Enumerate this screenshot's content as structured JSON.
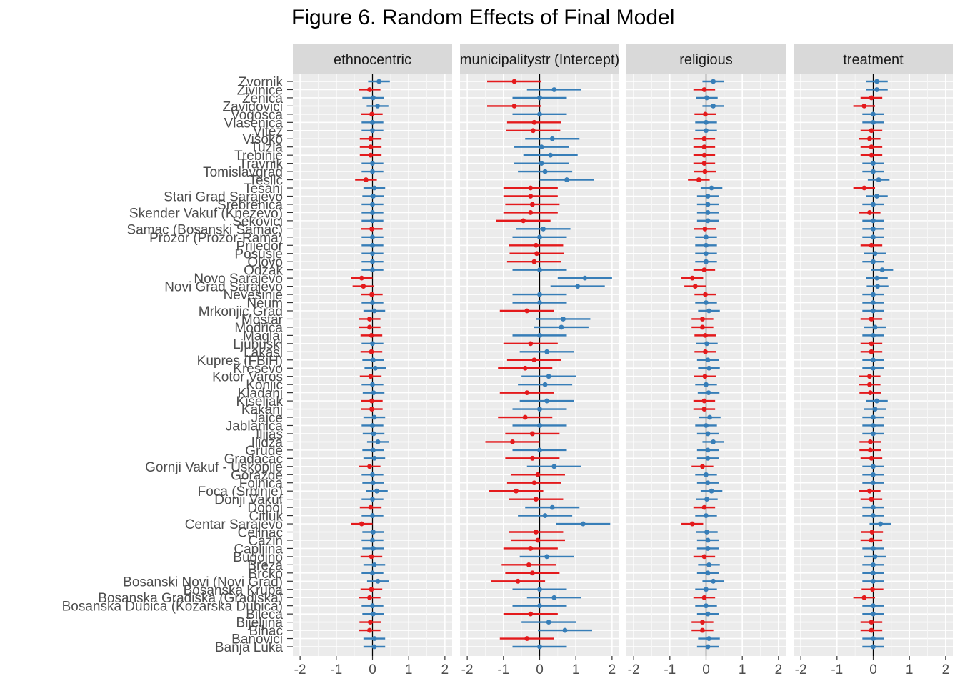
{
  "chart_data": {
    "type": "scatter",
    "title": "Figure 6. Random Effects of Final Model",
    "xlabel": "",
    "ylabel": "",
    "xlim": [
      -2.2,
      2.2
    ],
    "xticks": [
      -2,
      -1,
      0,
      1,
      2
    ],
    "xtick_labels": [
      "-2",
      "-1",
      "0",
      "1",
      "2"
    ],
    "grid": true,
    "reference_line": 0,
    "error_bars": "interval",
    "colors": {
      "negative": "#e41a1c",
      "positive": "#377eb8",
      "panel_bg": "#ebebeb",
      "strip_bg": "#d9d9d9"
    },
    "categories": [
      "Zvornik",
      "Zivinice",
      "Zenica",
      "Zavidovici",
      "Vogosca",
      "Vlasenica",
      "Vitez",
      "Visoko",
      "Tuzla",
      "Trebinje",
      "Travnik",
      "Tomislavgrad",
      "Teslic",
      "Tesanj",
      "Stari Grad Sarajevo",
      "Srebrenica",
      "Skender Vakuf (Knezevo)",
      "Sekovici",
      "Samac (Bosanski Samac)",
      "Prozor (Prozor-Rama)",
      "Prijedor",
      "Posusje",
      "Olovo",
      "Odzak",
      "Novo Sarajevo",
      "Novi Grad Sarajevo",
      "Nevesinje",
      "Neum",
      "Mrkonjic Grad",
      "Mostar",
      "Modrica",
      "Maglaj",
      "Ljubuski",
      "Lakasi",
      "Kupres (FBiH)",
      "Kresevo",
      "Kotor Varos",
      "Konjic",
      "Kladanj",
      "Kiseljak",
      "Kakanj",
      "Jajce",
      "Jablanica",
      "Ilijas",
      "Ilidza",
      "Grude",
      "Gradacac",
      "Gornji Vakuf - Uskoplje",
      "Gorazde",
      "Fojnica",
      "Foca (Srbinje)",
      "Donji Vakuf",
      "Doboj",
      "Citluk",
      "Centar Sarajevo",
      "Celinac",
      "Cazin",
      "Capljina",
      "Bugojno",
      "Breza",
      "Brcko",
      "Bosanski Novi (Novi Grad)",
      "Bosanska Krupa",
      "Bosanska Gradiska (Gradiska)",
      "Bosanska Dubica (Kozarska Dubica)",
      "Bileca",
      "Bijeljina",
      "Bihac",
      "Banovici",
      "Banja Luka"
    ],
    "panels": [
      {
        "name": "ethnocentric",
        "halfwidth": 0.3,
        "values": [
          0.18,
          -0.08,
          0.02,
          0.14,
          -0.02,
          0.0,
          0.0,
          -0.05,
          -0.05,
          -0.05,
          0.0,
          0.0,
          -0.18,
          0.05,
          0.02,
          0.0,
          0.0,
          0.0,
          -0.02,
          0.0,
          0.0,
          0.0,
          0.0,
          0.0,
          -0.3,
          -0.25,
          -0.02,
          0.0,
          0.05,
          -0.08,
          -0.08,
          -0.03,
          0.0,
          -0.03,
          0.02,
          0.08,
          -0.05,
          0.0,
          0.03,
          -0.02,
          -0.02,
          0.05,
          0.0,
          0.03,
          0.15,
          0.02,
          0.05,
          -0.08,
          0.0,
          0.02,
          0.12,
          0.0,
          -0.05,
          0.0,
          -0.3,
          0.02,
          0.0,
          0.02,
          -0.03,
          0.05,
          0.0,
          0.15,
          -0.03,
          -0.08,
          0.0,
          0.02,
          -0.06,
          -0.08,
          0.05,
          0.05
        ]
      },
      {
        "name": "municipalitystr (Intercept)",
        "halfwidth": 0.75,
        "values": [
          -0.7,
          0.4,
          0.0,
          -0.7,
          0.0,
          -0.15,
          -0.18,
          0.35,
          0.05,
          0.3,
          0.05,
          0.15,
          0.75,
          -0.25,
          -0.25,
          -0.2,
          -0.25,
          -0.45,
          0.1,
          0.0,
          -0.1,
          -0.08,
          -0.15,
          0.0,
          1.25,
          1.05,
          0.0,
          0.0,
          -0.35,
          0.65,
          0.6,
          0.0,
          -0.25,
          0.2,
          -0.15,
          -0.4,
          0.25,
          0.15,
          -0.35,
          0.2,
          0.0,
          -0.4,
          0.0,
          -0.2,
          -0.75,
          0.0,
          -0.2,
          0.4,
          -0.05,
          -0.15,
          -0.65,
          -0.1,
          0.35,
          0.15,
          1.2,
          -0.1,
          -0.05,
          -0.25,
          0.2,
          -0.3,
          -0.2,
          -0.6,
          0.0,
          0.4,
          0.0,
          -0.25,
          0.25,
          0.7,
          -0.35,
          0.0
        ]
      },
      {
        "name": "religious",
        "halfwidth": 0.3,
        "values": [
          0.2,
          -0.05,
          0.02,
          0.2,
          -0.02,
          0.0,
          0.0,
          -0.05,
          -0.05,
          -0.05,
          -0.05,
          -0.03,
          -0.2,
          0.15,
          0.05,
          0.05,
          0.05,
          0.05,
          -0.03,
          0.0,
          0.0,
          0.0,
          0.0,
          -0.05,
          -0.38,
          -0.3,
          -0.02,
          0.0,
          0.08,
          -0.1,
          -0.1,
          -0.02,
          0.02,
          -0.02,
          0.05,
          0.08,
          -0.03,
          0.0,
          0.07,
          -0.05,
          -0.05,
          0.1,
          0.0,
          0.05,
          0.2,
          0.05,
          0.05,
          -0.1,
          0.0,
          0.05,
          0.15,
          0.02,
          -0.05,
          0.0,
          -0.38,
          0.02,
          0.05,
          0.05,
          -0.05,
          0.08,
          0.05,
          0.2,
          0.0,
          -0.05,
          0.0,
          0.05,
          -0.1,
          -0.1,
          0.08,
          0.05
        ]
      },
      {
        "name": "treatment",
        "halfwidth": 0.3,
        "values": [
          0.1,
          0.1,
          -0.05,
          -0.25,
          0.0,
          0.0,
          -0.05,
          -0.1,
          -0.05,
          -0.05,
          0.0,
          0.0,
          0.15,
          -0.25,
          0.1,
          0.0,
          -0.1,
          0.0,
          0.0,
          0.0,
          -0.05,
          0.05,
          0.0,
          0.25,
          0.1,
          0.12,
          0.0,
          0.0,
          0.0,
          -0.05,
          0.05,
          0.0,
          -0.05,
          -0.05,
          0.0,
          0.0,
          -0.1,
          -0.1,
          -0.08,
          0.1,
          0.05,
          0.0,
          0.0,
          0.0,
          -0.08,
          -0.08,
          -0.05,
          0.0,
          0.0,
          0.0,
          -0.1,
          -0.05,
          0.0,
          0.0,
          0.2,
          -0.03,
          -0.05,
          0.0,
          0.05,
          0.0,
          0.0,
          0.0,
          -0.02,
          -0.25,
          0.0,
          0.0,
          -0.05,
          -0.05,
          0.0,
          0.0
        ]
      }
    ]
  }
}
